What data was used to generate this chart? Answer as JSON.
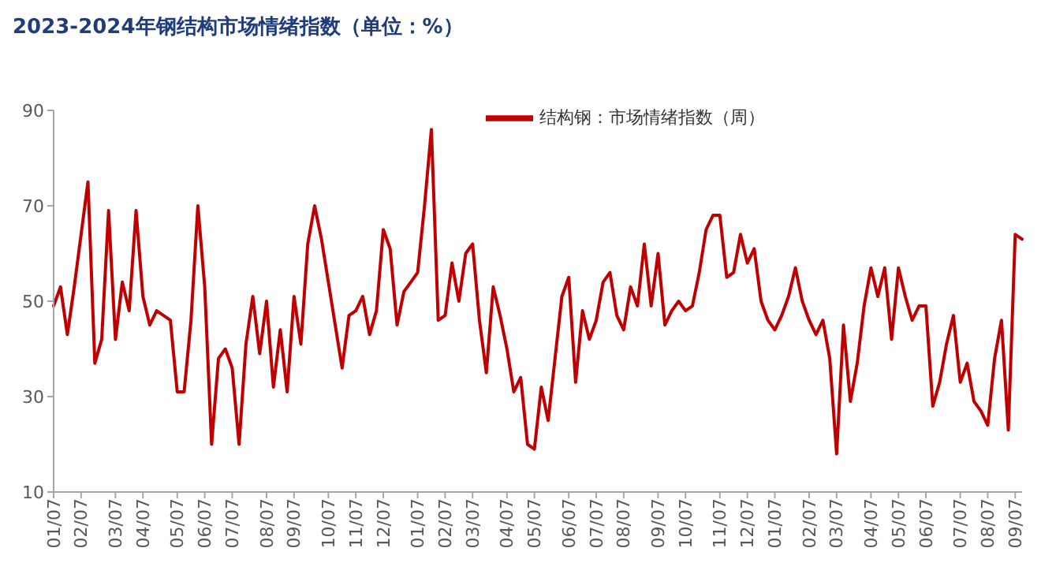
{
  "chart_data": {
    "type": "line",
    "title": "2023-2024年钢结构市场情绪指数（单位：%）",
    "categories": [
      "01/07",
      null,
      null,
      null,
      "02/07",
      null,
      null,
      null,
      null,
      "03/07",
      null,
      null,
      null,
      "04/07",
      null,
      null,
      null,
      null,
      "05/07",
      null,
      null,
      null,
      "06/07",
      null,
      null,
      null,
      "07/07",
      null,
      null,
      null,
      null,
      "08/07",
      null,
      null,
      null,
      "09/07",
      null,
      null,
      null,
      null,
      "10/07",
      null,
      null,
      null,
      "11/07",
      null,
      null,
      null,
      "12/07",
      null,
      null,
      null,
      null,
      "01/07",
      null,
      null,
      null,
      "02/07",
      null,
      null,
      null,
      "03/07",
      null,
      null,
      null,
      null,
      "04/07",
      null,
      null,
      null,
      "05/07",
      null,
      null,
      null,
      null,
      "06/07",
      null,
      null,
      null,
      "07/07",
      null,
      null,
      null,
      "08/07",
      null,
      null,
      null,
      null,
      "09/07",
      null,
      null,
      null,
      "10/07",
      null,
      null,
      null,
      null,
      "11/07",
      null,
      null,
      null,
      "12/07",
      null,
      null,
      null,
      "01/07",
      null,
      null,
      null,
      null,
      "02/07",
      null,
      null,
      null,
      "03/07",
      null,
      null,
      null,
      null,
      "04/07",
      null,
      null,
      null,
      "05/07",
      null,
      null,
      null,
      "06/07",
      null,
      null,
      null,
      null,
      "07/07",
      null,
      null,
      null,
      "08/07",
      null,
      null,
      null,
      "09/07",
      null
    ],
    "series": [
      {
        "name": "结构钢：市场情绪指数（周）",
        "color": "#c00000",
        "values": [
          49,
          53,
          43,
          53,
          64,
          75,
          37,
          42,
          69,
          42,
          54,
          48,
          69,
          51,
          45,
          48,
          47,
          46,
          31,
          31,
          46,
          70,
          53,
          20,
          38,
          40,
          36,
          20,
          41,
          51,
          39,
          50,
          32,
          44,
          31,
          51,
          41,
          62,
          70,
          63,
          54,
          45,
          36,
          47,
          48,
          51,
          43,
          48,
          65,
          61,
          45,
          52,
          54,
          56,
          70,
          86,
          46,
          47,
          58,
          50,
          60,
          62,
          46,
          35,
          53,
          47,
          40,
          31,
          34,
          20,
          19,
          32,
          25,
          38,
          51,
          55,
          33,
          48,
          42,
          46,
          54,
          56,
          47,
          44,
          53,
          49,
          62,
          49,
          60,
          45,
          48,
          50,
          48,
          49,
          56,
          65,
          68,
          68,
          55,
          56,
          64,
          58,
          61,
          50,
          46,
          44,
          47,
          51,
          57,
          50,
          46,
          43,
          46,
          38,
          18,
          45,
          29,
          37,
          49,
          57,
          51,
          57,
          42,
          57,
          51,
          46,
          49,
          49,
          28,
          33,
          41,
          47,
          33,
          37,
          29,
          27,
          24,
          38,
          46,
          23,
          64,
          63
        ]
      }
    ],
    "ylim": [
      10,
      90
    ],
    "yticks": [
      10,
      30,
      50,
      70,
      90
    ],
    "legend": "top"
  }
}
